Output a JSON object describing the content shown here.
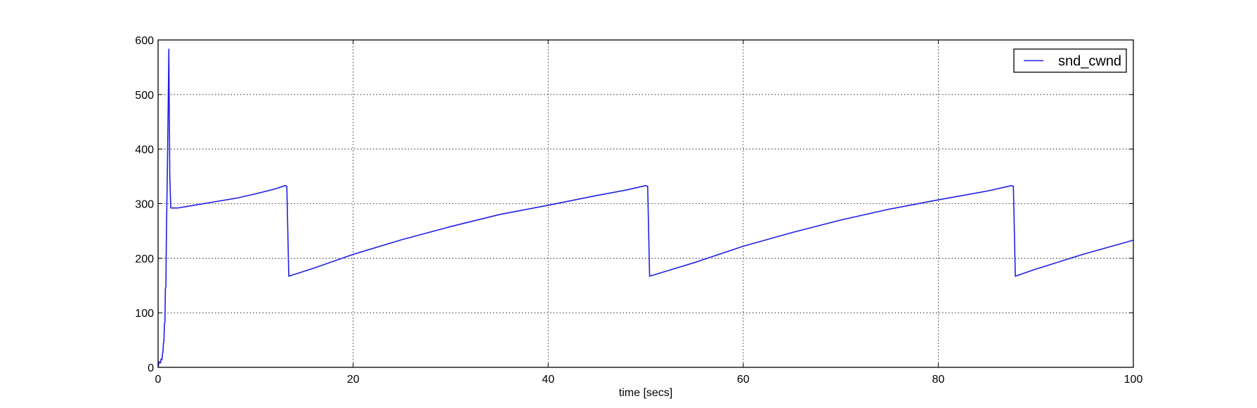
{
  "chart_data": {
    "type": "line",
    "title": "",
    "xlabel": "time [secs]",
    "ylabel": "",
    "xlim": [
      0,
      100
    ],
    "ylim": [
      0,
      600
    ],
    "xticks": [
      0,
      20,
      40,
      60,
      80,
      100
    ],
    "yticks": [
      0,
      100,
      200,
      300,
      400,
      500,
      600
    ],
    "grid": true,
    "grid_style": "dotted",
    "legend_position": "top-right",
    "series": [
      {
        "name": "snd_cwnd",
        "color": "#1f1fe6",
        "points": [
          [
            0,
            0
          ],
          [
            0.1,
            10
          ],
          [
            0.25,
            8
          ],
          [
            0.3,
            15
          ],
          [
            0.4,
            14
          ],
          [
            0.45,
            25
          ],
          [
            0.5,
            28
          ],
          [
            0.55,
            45
          ],
          [
            0.6,
            48
          ],
          [
            0.65,
            80
          ],
          [
            0.7,
            82
          ],
          [
            0.75,
            145
          ],
          [
            0.8,
            148
          ],
          [
            0.85,
            240
          ],
          [
            0.9,
            300
          ],
          [
            0.95,
            360
          ],
          [
            1.0,
            430
          ],
          [
            1.05,
            500
          ],
          [
            1.1,
            583
          ],
          [
            1.2,
            350
          ],
          [
            1.3,
            292
          ],
          [
            2,
            292
          ],
          [
            4,
            298
          ],
          [
            6,
            304
          ],
          [
            8,
            310
          ],
          [
            10,
            318
          ],
          [
            12,
            327
          ],
          [
            13.0,
            333
          ],
          [
            13.2,
            332
          ],
          [
            13.4,
            167
          ],
          [
            16,
            182
          ],
          [
            20,
            207
          ],
          [
            25,
            234
          ],
          [
            30,
            258
          ],
          [
            35,
            280
          ],
          [
            40,
            297
          ],
          [
            45,
            315
          ],
          [
            48,
            325
          ],
          [
            50.0,
            333
          ],
          [
            50.2,
            332
          ],
          [
            50.4,
            167
          ],
          [
            55,
            192
          ],
          [
            60,
            222
          ],
          [
            65,
            247
          ],
          [
            70,
            270
          ],
          [
            75,
            290
          ],
          [
            80,
            307
          ],
          [
            85,
            323
          ],
          [
            87.5,
            333
          ],
          [
            87.7,
            332
          ],
          [
            87.9,
            167
          ],
          [
            90,
            180
          ],
          [
            95,
            208
          ],
          [
            100,
            233
          ]
        ]
      }
    ]
  }
}
